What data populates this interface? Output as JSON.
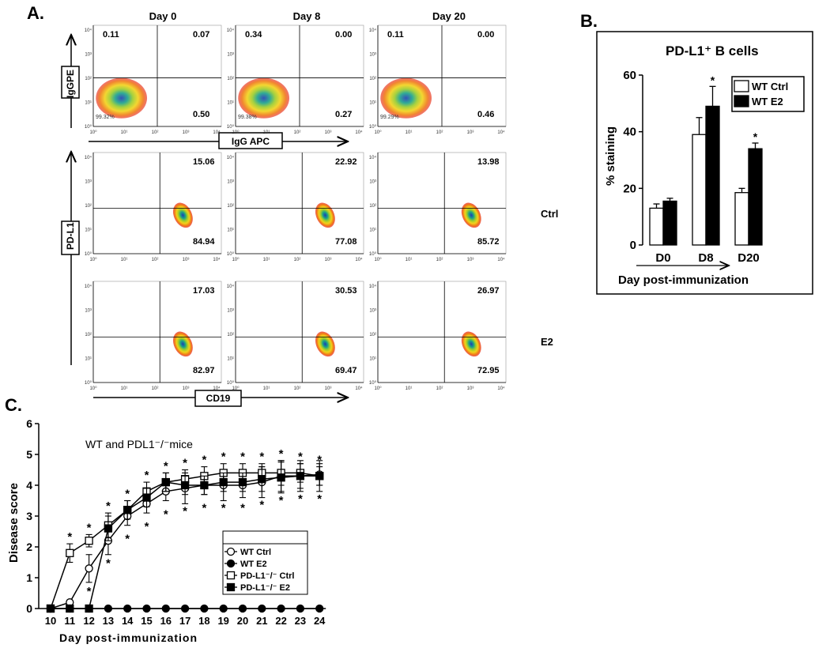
{
  "panel_a": {
    "letter": "A.",
    "day_labels": [
      "Day 0",
      "Day 8",
      "Day 20"
    ],
    "row1_ylabel": "IgGPE",
    "row1_xlabel": "IgG APC",
    "row23_ylabel": "PD-L1",
    "row23_xlabel": "CD19",
    "row_labels": [
      "Ctrl",
      "E2"
    ],
    "isotype_row": [
      {
        "ul": "0.11",
        "ur": "0.07",
        "lr": "0.50",
        "ll": "99.32%"
      },
      {
        "ul": "0.34",
        "ur": "0.00",
        "lr": "0.27",
        "ll": "99.38%"
      },
      {
        "ul": "0.11",
        "ur": "0.00",
        "lr": "0.46",
        "ll": "99.29%"
      }
    ],
    "ctrl_row": [
      {
        "ur": "15.06",
        "lr": "84.94"
      },
      {
        "ur": "22.92",
        "lr": "77.08"
      },
      {
        "ur": "13.98",
        "lr": "85.72"
      }
    ],
    "e2_row": [
      {
        "ur": "17.03",
        "lr": "82.97"
      },
      {
        "ur": "30.53",
        "lr": "69.47"
      },
      {
        "ur": "26.97",
        "lr": "72.95"
      }
    ],
    "axis_ticks": [
      "10⁰",
      "10¹",
      "10²",
      "10³",
      "10⁴"
    ]
  },
  "chart_data": [
    {
      "type": "bar",
      "panel": "B.",
      "title": "PD-L1⁺ B cells",
      "xlabel": "Day post-immunization",
      "ylabel": "% staining",
      "ylim": [
        0,
        60
      ],
      "yticks": [
        "0",
        "20",
        "40",
        "60"
      ],
      "categories": [
        "D0",
        "D8",
        "D20"
      ],
      "series": [
        {
          "name": "WT Ctrl",
          "values": [
            13,
            39,
            18.5
          ],
          "errors": [
            1.5,
            6,
            1.5
          ],
          "color": "#ffffff"
        },
        {
          "name": "WT E2",
          "values": [
            15.5,
            49,
            34
          ],
          "errors": [
            1,
            7,
            2
          ],
          "color": "#000000"
        }
      ],
      "significance": [
        "",
        "*",
        "*"
      ]
    },
    {
      "type": "line",
      "panel": "C.",
      "subtitle": "WT and PDL1⁻/⁻mice",
      "xlabel": "Day post-immunization",
      "ylabel": "Disease score",
      "ylim": [
        0,
        6
      ],
      "yticks": [
        "0",
        "1",
        "2",
        "3",
        "4",
        "5",
        "6"
      ],
      "x": [
        10,
        11,
        12,
        13,
        14,
        15,
        16,
        17,
        18,
        19,
        20,
        21,
        22,
        23,
        24
      ],
      "series": [
        {
          "name": "WT Ctrl",
          "marker": "open-circle",
          "values": [
            0,
            0.2,
            1.3,
            2.2,
            3.0,
            3.4,
            3.8,
            3.9,
            4.0,
            4.0,
            4.0,
            4.1,
            4.3,
            4.3,
            4.35
          ],
          "errors": [
            0,
            0,
            0.45,
            0.45,
            0.3,
            0.3,
            0.3,
            0.5,
            0.3,
            0.5,
            0.4,
            0.5,
            0.5,
            0.4,
            0.35
          ]
        },
        {
          "name": "WT  E2",
          "marker": "filled-circle",
          "values": [
            0,
            0,
            0,
            0,
            0,
            0,
            0,
            0,
            0,
            0,
            0,
            0,
            0,
            0,
            0
          ],
          "errors": [
            0,
            0,
            0,
            0,
            0,
            0,
            0,
            0,
            0,
            0,
            0,
            0,
            0,
            0,
            0
          ]
        },
        {
          "name": "PD-L1⁻/⁻ Ctrl",
          "marker": "open-square",
          "values": [
            0,
            1.8,
            2.2,
            2.7,
            3.2,
            3.8,
            4.1,
            4.2,
            4.3,
            4.4,
            4.4,
            4.4,
            4.4,
            4.4,
            4.3
          ],
          "errors": [
            0,
            0.3,
            0.2,
            0.4,
            0.3,
            0.3,
            0.3,
            0.3,
            0.3,
            0.3,
            0.3,
            0.3,
            0.4,
            0.3,
            0.3
          ]
        },
        {
          "name": "PD-L1⁻/⁻ E2",
          "marker": "filled-square",
          "values": [
            0,
            0,
            0,
            2.6,
            3.2,
            3.6,
            4.1,
            4.0,
            4.0,
            4.1,
            4.1,
            4.2,
            4.25,
            4.3,
            4.3
          ],
          "errors": [
            0,
            0,
            0,
            0.4,
            0.3,
            0.3,
            0.3,
            0.3,
            0.3,
            0.3,
            0.3,
            0.4,
            0.5,
            0.5,
            0.5
          ]
        }
      ],
      "significance_marks": "*"
    }
  ]
}
